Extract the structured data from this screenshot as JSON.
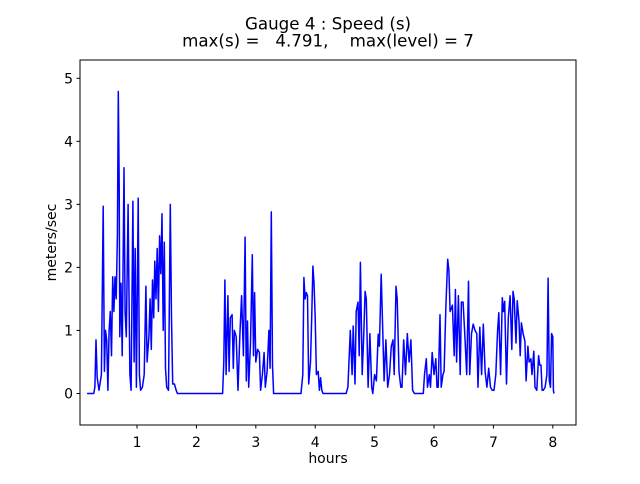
{
  "chart_data": {
    "type": "line",
    "title": "Gauge 4 : Speed (s)",
    "subtitle": "max(s) =   4.791,    max(level) = 7",
    "xlabel": "hours",
    "ylabel": "meters/sec",
    "max_s": 4.791,
    "max_level": 7,
    "x_ticks": [
      1,
      2,
      3,
      4,
      5,
      6,
      7,
      8
    ],
    "y_ticks": [
      0,
      1,
      2,
      3,
      4,
      5
    ],
    "xlim": [
      0.04,
      8.39
    ],
    "ylim": [
      -0.5,
      5.29
    ],
    "grid": false,
    "legend": "none",
    "colors": {
      "line": "#0000ff",
      "axis": "#000000",
      "background": "#ffffff"
    },
    "series": [
      {
        "name": "speed",
        "color": "#0000ff",
        "points": [
          [
            0.16,
            0
          ],
          [
            0.27,
            0
          ],
          [
            0.29,
            0.1
          ],
          [
            0.31,
            0.85
          ],
          [
            0.33,
            0.25
          ],
          [
            0.36,
            0.05
          ],
          [
            0.4,
            0.3
          ],
          [
            0.43,
            2.97
          ],
          [
            0.45,
            0.35
          ],
          [
            0.47,
            1.0
          ],
          [
            0.49,
            0.85
          ],
          [
            0.51,
            0.05
          ],
          [
            0.53,
            1.0
          ],
          [
            0.55,
            1.3
          ],
          [
            0.57,
            0.6
          ],
          [
            0.59,
            1.85
          ],
          [
            0.61,
            1.3
          ],
          [
            0.63,
            1.85
          ],
          [
            0.65,
            1.5
          ],
          [
            0.67,
            2.5
          ],
          [
            0.685,
            4.791
          ],
          [
            0.7,
            3.3
          ],
          [
            0.71,
            0.9
          ],
          [
            0.73,
            1.75
          ],
          [
            0.75,
            0.6
          ],
          [
            0.78,
            3.58
          ],
          [
            0.8,
            1.3
          ],
          [
            0.82,
            0.9
          ],
          [
            0.85,
            3.0
          ],
          [
            0.86,
            2.0
          ],
          [
            0.88,
            0.3
          ],
          [
            0.9,
            0.05
          ],
          [
            0.93,
            3.05
          ],
          [
            0.95,
            0.5
          ],
          [
            0.97,
            2.3
          ],
          [
            0.99,
            0.1
          ],
          [
            1.02,
            3.1
          ],
          [
            1.04,
            0.3
          ],
          [
            1.06,
            0.05
          ],
          [
            1.09,
            0.1
          ],
          [
            1.12,
            0.3
          ],
          [
            1.15,
            1.7
          ],
          [
            1.17,
            0.5
          ],
          [
            1.2,
            0.9
          ],
          [
            1.22,
            1.5
          ],
          [
            1.24,
            0.7
          ],
          [
            1.26,
            1.8
          ],
          [
            1.28,
            1.2
          ],
          [
            1.3,
            2.1
          ],
          [
            1.32,
            1.5
          ],
          [
            1.34,
            2.3
          ],
          [
            1.36,
            1.3
          ],
          [
            1.38,
            2.5
          ],
          [
            1.4,
            1.9
          ],
          [
            1.42,
            2.85
          ],
          [
            1.44,
            1.0
          ],
          [
            1.46,
            2.4
          ],
          [
            1.48,
            0.4
          ],
          [
            1.5,
            0.1
          ],
          [
            1.53,
            0.05
          ],
          [
            1.56,
            3.0
          ],
          [
            1.58,
            1.2
          ],
          [
            1.6,
            0.15
          ],
          [
            1.63,
            0.15
          ],
          [
            1.66,
            0.05
          ],
          [
            1.68,
            0
          ],
          [
            2.44,
            0
          ],
          [
            2.46,
            0.5
          ],
          [
            2.48,
            1.8
          ],
          [
            2.5,
            0.3
          ],
          [
            2.53,
            1.55
          ],
          [
            2.55,
            0.35
          ],
          [
            2.57,
            1.2
          ],
          [
            2.6,
            1.25
          ],
          [
            2.62,
            0.4
          ],
          [
            2.64,
            1.0
          ],
          [
            2.67,
            0.9
          ],
          [
            2.7,
            0.05
          ],
          [
            2.73,
            0.9
          ],
          [
            2.76,
            1.55
          ],
          [
            2.79,
            0.6
          ],
          [
            2.82,
            2.48
          ],
          [
            2.84,
            0.2
          ],
          [
            2.86,
            1.15
          ],
          [
            2.88,
            0.1
          ],
          [
            2.91,
            0.8
          ],
          [
            2.94,
            2.2
          ],
          [
            2.96,
            0.6
          ],
          [
            2.98,
            1.6
          ],
          [
            3.0,
            0.5
          ],
          [
            3.03,
            0.7
          ],
          [
            3.06,
            0.65
          ],
          [
            3.08,
            0.05
          ],
          [
            3.11,
            0.3
          ],
          [
            3.14,
            0.65
          ],
          [
            3.16,
            0.1
          ],
          [
            3.19,
            0.35
          ],
          [
            3.22,
            1.0
          ],
          [
            3.24,
            0.4
          ],
          [
            3.26,
            2.88
          ],
          [
            3.28,
            0.45
          ],
          [
            3.3,
            0
          ],
          [
            3.76,
            0
          ],
          [
            3.79,
            0.3
          ],
          [
            3.81,
            1.84
          ],
          [
            3.83,
            1.5
          ],
          [
            3.85,
            1.6
          ],
          [
            3.87,
            1.55
          ],
          [
            3.89,
            0.15
          ],
          [
            3.92,
            0.5
          ],
          [
            3.94,
            1.2
          ],
          [
            3.96,
            2.02
          ],
          [
            3.98,
            1.75
          ],
          [
            4.0,
            1.2
          ],
          [
            4.02,
            0.3
          ],
          [
            4.05,
            0.35
          ],
          [
            4.07,
            0.05
          ],
          [
            4.09,
            0.25
          ],
          [
            4.11,
            0.05
          ],
          [
            4.13,
            0
          ],
          [
            4.52,
            0
          ],
          [
            4.55,
            0.1
          ],
          [
            4.59,
            1.0
          ],
          [
            4.62,
            0.3
          ],
          [
            4.64,
            1.07
          ],
          [
            4.67,
            0.15
          ],
          [
            4.69,
            1.3
          ],
          [
            4.72,
            1.45
          ],
          [
            4.74,
            0.6
          ],
          [
            4.76,
            2.08
          ],
          [
            4.79,
            0.3
          ],
          [
            4.82,
            1.0
          ],
          [
            4.84,
            1.62
          ],
          [
            4.86,
            1.5
          ],
          [
            4.89,
            0.1
          ],
          [
            4.92,
            0.95
          ],
          [
            4.95,
            0.1
          ],
          [
            4.97,
            0
          ],
          [
            5.0,
            0.3
          ],
          [
            5.03,
            0.2
          ],
          [
            5.06,
            0.94
          ],
          [
            5.08,
            0.75
          ],
          [
            5.11,
            1.89
          ],
          [
            5.13,
            1.2
          ],
          [
            5.16,
            0.2
          ],
          [
            5.19,
            0.85
          ],
          [
            5.22,
            0.1
          ],
          [
            5.25,
            0.3
          ],
          [
            5.28,
            0.75
          ],
          [
            5.31,
            0.85
          ],
          [
            5.33,
            0.3
          ],
          [
            5.36,
            1.7
          ],
          [
            5.38,
            1.5
          ],
          [
            5.41,
            0.35
          ],
          [
            5.44,
            0.1
          ],
          [
            5.46,
            0.1
          ],
          [
            5.49,
            0.85
          ],
          [
            5.52,
            0.3
          ],
          [
            5.55,
            0.95
          ],
          [
            5.58,
            0.5
          ],
          [
            5.61,
            0.85
          ],
          [
            5.64,
            0.05
          ],
          [
            5.67,
            0
          ],
          [
            5.82,
            0
          ],
          [
            5.84,
            0.3
          ],
          [
            5.87,
            0.55
          ],
          [
            5.89,
            0.1
          ],
          [
            5.92,
            0.3
          ],
          [
            5.94,
            0.1
          ],
          [
            5.97,
            0.65
          ],
          [
            6.0,
            0.3
          ],
          [
            6.03,
            0.55
          ],
          [
            6.05,
            0.1
          ],
          [
            6.07,
            0.1
          ],
          [
            6.1,
            1.25
          ],
          [
            6.12,
            0.1
          ],
          [
            6.15,
            0.3
          ],
          [
            6.17,
            0.35
          ],
          [
            6.2,
            1.39
          ],
          [
            6.23,
            2.13
          ],
          [
            6.25,
            1.95
          ],
          [
            6.27,
            1.3
          ],
          [
            6.29,
            1.35
          ],
          [
            6.31,
            1.4
          ],
          [
            6.34,
            0.6
          ],
          [
            6.36,
            1.65
          ],
          [
            6.38,
            0.5
          ],
          [
            6.41,
            1.55
          ],
          [
            6.44,
            0.3
          ],
          [
            6.46,
            1.45
          ],
          [
            6.49,
            1.45
          ],
          [
            6.52,
            0.9
          ],
          [
            6.55,
            0.3
          ],
          [
            6.58,
            1.78
          ],
          [
            6.6,
            0.3
          ],
          [
            6.63,
            0.95
          ],
          [
            6.66,
            1.1
          ],
          [
            6.69,
            1.0
          ],
          [
            6.72,
            0.95
          ],
          [
            6.74,
            0.1
          ],
          [
            6.77,
            1.05
          ],
          [
            6.8,
            0.3
          ],
          [
            6.83,
            1.1
          ],
          [
            6.86,
            0.35
          ],
          [
            6.89,
            0.1
          ],
          [
            6.92,
            0.4
          ],
          [
            6.95,
            0.1
          ],
          [
            6.98,
            0.05
          ],
          [
            7.01,
            0.05
          ],
          [
            7.04,
            0.3
          ],
          [
            7.07,
            1.0
          ],
          [
            7.09,
            1.28
          ],
          [
            7.12,
            0.3
          ],
          [
            7.15,
            1.52
          ],
          [
            7.17,
            1.3
          ],
          [
            7.19,
            1.46
          ],
          [
            7.22,
            0.15
          ],
          [
            7.25,
            1.2
          ],
          [
            7.28,
            1.55
          ],
          [
            7.31,
            0.7
          ],
          [
            7.33,
            1.62
          ],
          [
            7.35,
            1.5
          ],
          [
            7.38,
            0.8
          ],
          [
            7.4,
            1.47
          ],
          [
            7.43,
            1.15
          ],
          [
            7.45,
            0.6
          ],
          [
            7.47,
            1.12
          ],
          [
            7.5,
            0.95
          ],
          [
            7.53,
            0.83
          ],
          [
            7.55,
            0.2
          ],
          [
            7.58,
            0.75
          ],
          [
            7.6,
            0.5
          ],
          [
            7.63,
            0.55
          ],
          [
            7.65,
            0.3
          ],
          [
            7.68,
            0.67
          ],
          [
            7.7,
            0.1
          ],
          [
            7.73,
            0.05
          ],
          [
            7.76,
            0.6
          ],
          [
            7.78,
            0.45
          ],
          [
            7.8,
            0.45
          ],
          [
            7.82,
            0.05
          ],
          [
            7.84,
            0.05
          ],
          [
            7.87,
            0.1
          ],
          [
            7.9,
            0.3
          ],
          [
            7.92,
            1.83
          ],
          [
            7.94,
            0.2
          ],
          [
            7.96,
            0.1
          ],
          [
            7.98,
            0.95
          ],
          [
            8.0,
            0.9
          ],
          [
            8.01,
            0.05
          ],
          [
            8.02,
            0
          ]
        ]
      }
    ]
  }
}
